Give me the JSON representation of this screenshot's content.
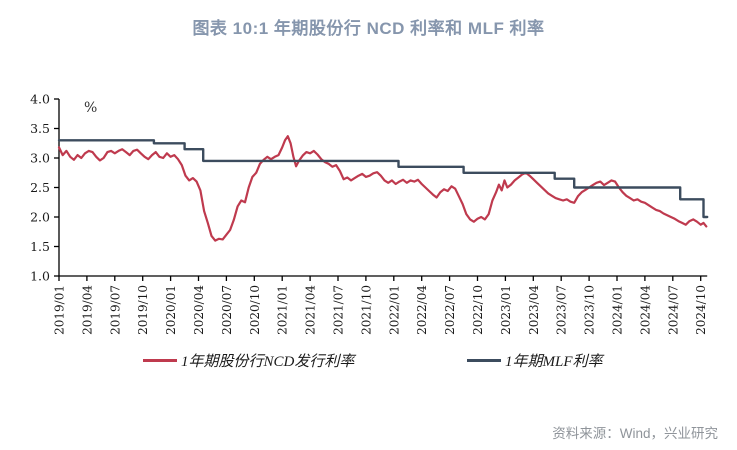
{
  "title": "图表 10:1 年期股份行 NCD 利率和 MLF 利率",
  "source": "资料来源：Wind，兴业研究",
  "colors": {
    "title_text": "#8696ad",
    "axis": "#000000",
    "ncd_line": "#bf3a4e",
    "mlf_line": "#3c4c5e",
    "source_text": "#8f949a"
  },
  "chart_data": {
    "type": "line",
    "title": "图表 10:1 年期股份行 NCD 利率和 MLF 利率",
    "ylabel": "%",
    "unit_label": "%",
    "ylim": [
      1.0,
      4.0
    ],
    "ytick_step": 0.5,
    "y_tick_labels": [
      "4.0",
      "3.5",
      "3.0",
      "2.5",
      "2.0",
      "1.5",
      "1.0"
    ],
    "y_tick_values": [
      4.0,
      3.5,
      3.0,
      2.5,
      2.0,
      1.5,
      1.0
    ],
    "x_unit": "months since 2019/01",
    "xlim_months": [
      0,
      69.7
    ],
    "x_tick_months": [
      0,
      3,
      6,
      9,
      12,
      15,
      18,
      21,
      24,
      27,
      30,
      33,
      36,
      39,
      42,
      45,
      48,
      51,
      54,
      57,
      60,
      63,
      66,
      69
    ],
    "x_tick_labels": [
      "2019/01",
      "2019/04",
      "2019/07",
      "2019/10",
      "2020/01",
      "2020/04",
      "2020/07",
      "2020/10",
      "2021/01",
      "2021/04",
      "2021/07",
      "2021/10",
      "2022/01",
      "2022/04",
      "2022/07",
      "2022/10",
      "2023/01",
      "2023/04",
      "2023/07",
      "2023/10",
      "2024/01",
      "2024/04",
      "2024/07",
      "2024/10"
    ],
    "grid": false,
    "legend_position": "bottom",
    "series": [
      {
        "name": "1年期股份行NCD发行利率",
        "color": "#bf3a4e",
        "line_style": "solid",
        "points": [
          [
            0,
            3.18
          ],
          [
            0.4,
            3.05
          ],
          [
            0.8,
            3.12
          ],
          [
            1.2,
            3.02
          ],
          [
            1.6,
            2.97
          ],
          [
            2,
            3.05
          ],
          [
            2.4,
            3.0
          ],
          [
            2.8,
            3.08
          ],
          [
            3.2,
            3.12
          ],
          [
            3.6,
            3.1
          ],
          [
            4,
            3.02
          ],
          [
            4.4,
            2.96
          ],
          [
            4.8,
            3.0
          ],
          [
            5.2,
            3.1
          ],
          [
            5.6,
            3.12
          ],
          [
            6,
            3.08
          ],
          [
            6.4,
            3.12
          ],
          [
            6.8,
            3.15
          ],
          [
            7.2,
            3.1
          ],
          [
            7.6,
            3.05
          ],
          [
            8,
            3.12
          ],
          [
            8.4,
            3.14
          ],
          [
            8.8,
            3.08
          ],
          [
            9.2,
            3.02
          ],
          [
            9.6,
            2.98
          ],
          [
            10,
            3.05
          ],
          [
            10.4,
            3.1
          ],
          [
            10.8,
            3.02
          ],
          [
            11.2,
            3.0
          ],
          [
            11.6,
            3.08
          ],
          [
            12,
            3.02
          ],
          [
            12.4,
            3.05
          ],
          [
            12.8,
            2.98
          ],
          [
            13.2,
            2.88
          ],
          [
            13.6,
            2.7
          ],
          [
            14,
            2.62
          ],
          [
            14.4,
            2.66
          ],
          [
            14.8,
            2.6
          ],
          [
            15.2,
            2.45
          ],
          [
            15.6,
            2.1
          ],
          [
            16,
            1.9
          ],
          [
            16.4,
            1.68
          ],
          [
            16.8,
            1.6
          ],
          [
            17.2,
            1.63
          ],
          [
            17.6,
            1.62
          ],
          [
            18,
            1.7
          ],
          [
            18.4,
            1.78
          ],
          [
            18.8,
            1.95
          ],
          [
            19.2,
            2.18
          ],
          [
            19.6,
            2.28
          ],
          [
            20,
            2.25
          ],
          [
            20.4,
            2.5
          ],
          [
            20.8,
            2.68
          ],
          [
            21.2,
            2.75
          ],
          [
            21.6,
            2.9
          ],
          [
            22,
            2.97
          ],
          [
            22.4,
            3.02
          ],
          [
            22.8,
            2.98
          ],
          [
            23.2,
            3.02
          ],
          [
            23.6,
            3.05
          ],
          [
            24,
            3.18
          ],
          [
            24.3,
            3.3
          ],
          [
            24.6,
            3.37
          ],
          [
            24.9,
            3.25
          ],
          [
            25.2,
            3.02
          ],
          [
            25.5,
            2.86
          ],
          [
            25.8,
            2.95
          ],
          [
            26.2,
            3.04
          ],
          [
            26.6,
            3.1
          ],
          [
            27,
            3.08
          ],
          [
            27.4,
            3.12
          ],
          [
            27.8,
            3.06
          ],
          [
            28.2,
            2.98
          ],
          [
            28.6,
            2.93
          ],
          [
            29,
            2.9
          ],
          [
            29.4,
            2.85
          ],
          [
            29.8,
            2.88
          ],
          [
            30.2,
            2.78
          ],
          [
            30.6,
            2.64
          ],
          [
            31,
            2.67
          ],
          [
            31.4,
            2.62
          ],
          [
            31.8,
            2.66
          ],
          [
            32.2,
            2.7
          ],
          [
            32.6,
            2.73
          ],
          [
            33,
            2.68
          ],
          [
            33.4,
            2.7
          ],
          [
            33.8,
            2.74
          ],
          [
            34.2,
            2.76
          ],
          [
            34.6,
            2.7
          ],
          [
            35,
            2.62
          ],
          [
            35.4,
            2.58
          ],
          [
            35.8,
            2.62
          ],
          [
            36.2,
            2.56
          ],
          [
            36.6,
            2.6
          ],
          [
            37,
            2.63
          ],
          [
            37.4,
            2.58
          ],
          [
            37.8,
            2.62
          ],
          [
            38.2,
            2.6
          ],
          [
            38.6,
            2.63
          ],
          [
            39,
            2.56
          ],
          [
            39.4,
            2.5
          ],
          [
            39.8,
            2.44
          ],
          [
            40.2,
            2.38
          ],
          [
            40.6,
            2.33
          ],
          [
            41,
            2.42
          ],
          [
            41.4,
            2.47
          ],
          [
            41.8,
            2.44
          ],
          [
            42.2,
            2.52
          ],
          [
            42.6,
            2.48
          ],
          [
            43,
            2.35
          ],
          [
            43.4,
            2.22
          ],
          [
            43.8,
            2.05
          ],
          [
            44.2,
            1.96
          ],
          [
            44.6,
            1.92
          ],
          [
            45,
            1.97
          ],
          [
            45.4,
            2.0
          ],
          [
            45.8,
            1.96
          ],
          [
            46.2,
            2.05
          ],
          [
            46.6,
            2.28
          ],
          [
            47,
            2.42
          ],
          [
            47.3,
            2.55
          ],
          [
            47.6,
            2.45
          ],
          [
            47.9,
            2.62
          ],
          [
            48.2,
            2.5
          ],
          [
            48.6,
            2.55
          ],
          [
            49,
            2.62
          ],
          [
            49.4,
            2.67
          ],
          [
            49.8,
            2.72
          ],
          [
            50.2,
            2.75
          ],
          [
            50.6,
            2.7
          ],
          [
            51,
            2.64
          ],
          [
            51.4,
            2.58
          ],
          [
            51.8,
            2.52
          ],
          [
            52.2,
            2.46
          ],
          [
            52.6,
            2.4
          ],
          [
            53,
            2.36
          ],
          [
            53.4,
            2.32
          ],
          [
            53.8,
            2.3
          ],
          [
            54.2,
            2.28
          ],
          [
            54.6,
            2.3
          ],
          [
            55,
            2.26
          ],
          [
            55.4,
            2.24
          ],
          [
            55.8,
            2.35
          ],
          [
            56.2,
            2.42
          ],
          [
            56.6,
            2.46
          ],
          [
            57,
            2.5
          ],
          [
            57.4,
            2.54
          ],
          [
            57.8,
            2.58
          ],
          [
            58.2,
            2.6
          ],
          [
            58.6,
            2.54
          ],
          [
            59,
            2.58
          ],
          [
            59.4,
            2.62
          ],
          [
            59.8,
            2.6
          ],
          [
            60.2,
            2.5
          ],
          [
            60.6,
            2.42
          ],
          [
            61,
            2.36
          ],
          [
            61.4,
            2.32
          ],
          [
            61.8,
            2.28
          ],
          [
            62.2,
            2.3
          ],
          [
            62.6,
            2.26
          ],
          [
            63,
            2.24
          ],
          [
            63.4,
            2.2
          ],
          [
            63.8,
            2.16
          ],
          [
            64.2,
            2.12
          ],
          [
            64.6,
            2.1
          ],
          [
            65,
            2.06
          ],
          [
            65.4,
            2.03
          ],
          [
            65.8,
            2.0
          ],
          [
            66.2,
            1.97
          ],
          [
            66.6,
            1.93
          ],
          [
            67,
            1.9
          ],
          [
            67.4,
            1.87
          ],
          [
            67.8,
            1.93
          ],
          [
            68.2,
            1.96
          ],
          [
            68.6,
            1.92
          ],
          [
            69,
            1.87
          ],
          [
            69.3,
            1.9
          ],
          [
            69.6,
            1.84
          ]
        ]
      },
      {
        "name": "1年期MLF利率",
        "color": "#3c4c5e",
        "line_style": "step",
        "points": [
          [
            0,
            3.3
          ],
          [
            10.2,
            3.3
          ],
          [
            10.2,
            3.25
          ],
          [
            13.5,
            3.25
          ],
          [
            13.5,
            3.15
          ],
          [
            15.5,
            3.15
          ],
          [
            15.5,
            2.95
          ],
          [
            36.5,
            2.95
          ],
          [
            36.5,
            2.85
          ],
          [
            43.5,
            2.85
          ],
          [
            43.5,
            2.75
          ],
          [
            53.3,
            2.75
          ],
          [
            53.3,
            2.65
          ],
          [
            55.4,
            2.65
          ],
          [
            55.4,
            2.5
          ],
          [
            66.8,
            2.5
          ],
          [
            66.8,
            2.3
          ],
          [
            69.3,
            2.3
          ],
          [
            69.3,
            2.0
          ],
          [
            69.7,
            2.0
          ]
        ]
      }
    ]
  }
}
